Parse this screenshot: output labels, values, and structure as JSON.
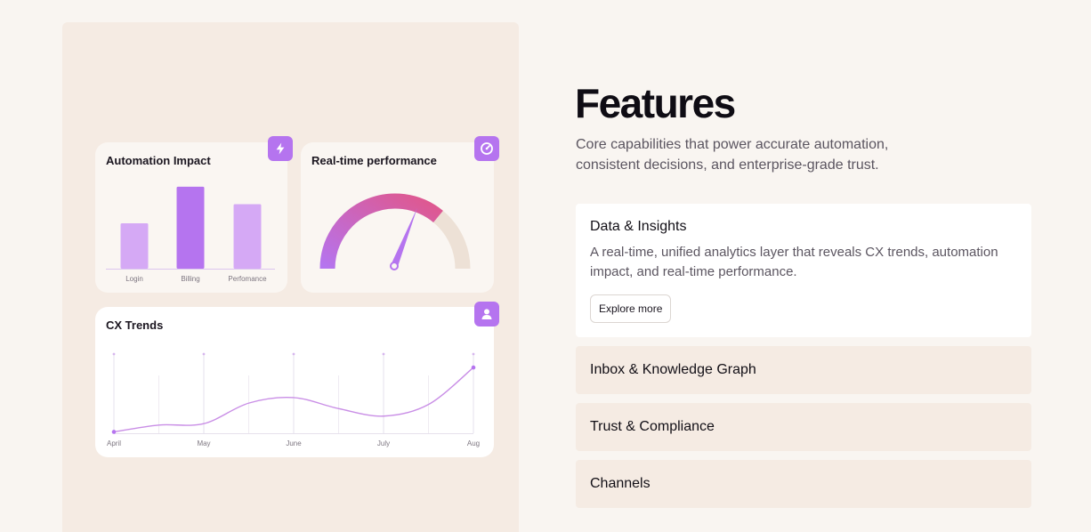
{
  "cards": {
    "automation_impact": {
      "title": "Automation Impact",
      "icon": "lightning-icon"
    },
    "realtime_performance": {
      "title": "Real-time performance",
      "icon": "gauge-icon",
      "gauge_level": 0.72
    },
    "cx_trends": {
      "title": "CX Trends",
      "icon": "user-icon"
    }
  },
  "chart_data": [
    {
      "type": "bar",
      "title": "Automation Impact",
      "categories": [
        "Login",
        "Billing",
        "Perfomance"
      ],
      "values": [
        52,
        94,
        74
      ],
      "ylim": [
        0,
        100
      ],
      "colors": [
        "#d5a9f5",
        "#b574ef",
        "#d5a9f5"
      ]
    },
    {
      "type": "line",
      "title": "CX Trends",
      "categories": [
        "April",
        "May",
        "June",
        "July",
        "Aug"
      ],
      "x": [
        0,
        0.5,
        1,
        1.5,
        2,
        2.5,
        3,
        3.5,
        4
      ],
      "values": [
        2,
        12,
        14,
        44,
        52,
        36,
        25,
        42,
        96
      ],
      "ylim": [
        0,
        100
      ],
      "grid": true,
      "color": "#c98ee6"
    }
  ],
  "colors": {
    "accent": "#b574ef",
    "bar_light": "#d5a9f5",
    "gauge_start": "#b574ef",
    "gauge_end": "#e0578c",
    "gauge_track": "#ede1d6"
  },
  "features": {
    "title": "Features",
    "subtitle": "Core capabilities that power accurate automation, consistent decisions, and enterprise-grade trust.",
    "open_item": {
      "heading": "Data & Insights",
      "description": "A real-time, unified analytics layer that reveals CX trends, automation impact, and real-time performance.",
      "button_label": "Explore more"
    },
    "items": [
      {
        "label": "Inbox & Knowledge Graph"
      },
      {
        "label": "Trust & Compliance"
      },
      {
        "label": "Channels"
      }
    ]
  }
}
